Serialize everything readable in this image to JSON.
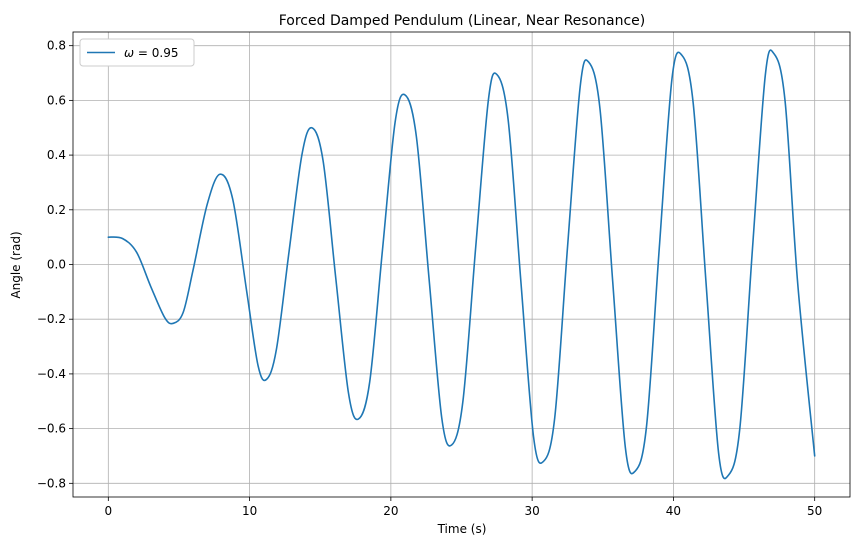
{
  "chart_data": {
    "type": "line",
    "title": "Forced Damped Pendulum (Linear, Near Resonance)",
    "xlabel": "Time (s)",
    "ylabel": "Angle (rad)",
    "xlim": [
      -2.5,
      52.5
    ],
    "ylim": [
      -0.85,
      0.85
    ],
    "xticks": [
      0,
      10,
      20,
      30,
      40,
      50
    ],
    "yticks": [
      -0.8,
      -0.6,
      -0.4,
      -0.2,
      0.0,
      0.2,
      0.4,
      0.6,
      0.8
    ],
    "xtick_labels": [
      "0",
      "10",
      "20",
      "30",
      "40",
      "50"
    ],
    "ytick_labels": [
      "−0.8",
      "−0.6",
      "−0.4",
      "−0.2",
      "0.0",
      "0.2",
      "0.4",
      "0.6",
      "0.8"
    ],
    "grid": true,
    "legend_position": "top-left",
    "series": [
      {
        "name": "ω = 0.95",
        "legend_symbol": "ω",
        "legend_rest": " = 0.95",
        "color": "#1f77b4",
        "points": [
          [
            0.0,
            0.1
          ],
          [
            1.0,
            0.095
          ],
          [
            2.0,
            0.045
          ],
          [
            3.0,
            -0.08
          ],
          [
            4.0,
            -0.195
          ],
          [
            4.6,
            -0.215
          ],
          [
            5.3,
            -0.175
          ],
          [
            6.0,
            -0.02
          ],
          [
            7.0,
            0.22
          ],
          [
            7.9,
            0.33
          ],
          [
            8.8,
            0.24
          ],
          [
            9.8,
            -0.1
          ],
          [
            10.6,
            -0.37
          ],
          [
            11.2,
            -0.42
          ],
          [
            11.9,
            -0.31
          ],
          [
            12.8,
            0.05
          ],
          [
            13.7,
            0.4
          ],
          [
            14.4,
            0.5
          ],
          [
            15.2,
            0.38
          ],
          [
            16.1,
            -0.05
          ],
          [
            17.0,
            -0.47
          ],
          [
            17.7,
            -0.565
          ],
          [
            18.5,
            -0.43
          ],
          [
            19.4,
            0.05
          ],
          [
            20.3,
            0.52
          ],
          [
            21.0,
            0.62
          ],
          [
            21.8,
            0.47
          ],
          [
            22.7,
            -0.05
          ],
          [
            23.6,
            -0.56
          ],
          [
            24.3,
            -0.66
          ],
          [
            25.1,
            -0.5
          ],
          [
            26.0,
            0.06
          ],
          [
            26.9,
            0.6
          ],
          [
            27.5,
            0.695
          ],
          [
            28.3,
            0.53
          ],
          [
            29.2,
            -0.06
          ],
          [
            30.1,
            -0.63
          ],
          [
            30.8,
            -0.72
          ],
          [
            31.6,
            -0.56
          ],
          [
            32.5,
            0.06
          ],
          [
            33.4,
            0.65
          ],
          [
            34.0,
            0.74
          ],
          [
            34.8,
            0.57
          ],
          [
            35.7,
            -0.06
          ],
          [
            36.6,
            -0.67
          ],
          [
            37.3,
            -0.755
          ],
          [
            38.1,
            -0.59
          ],
          [
            39.0,
            0.06
          ],
          [
            39.9,
            0.68
          ],
          [
            40.6,
            0.765
          ],
          [
            41.4,
            0.59
          ],
          [
            42.3,
            -0.06
          ],
          [
            43.2,
            -0.69
          ],
          [
            43.9,
            -0.77
          ],
          [
            44.7,
            -0.6
          ],
          [
            45.6,
            0.06
          ],
          [
            46.5,
            0.69
          ],
          [
            47.1,
            0.772
          ],
          [
            47.9,
            0.6
          ],
          [
            48.8,
            -0.07
          ],
          [
            50.0,
            -0.7
          ]
        ]
      }
    ]
  }
}
